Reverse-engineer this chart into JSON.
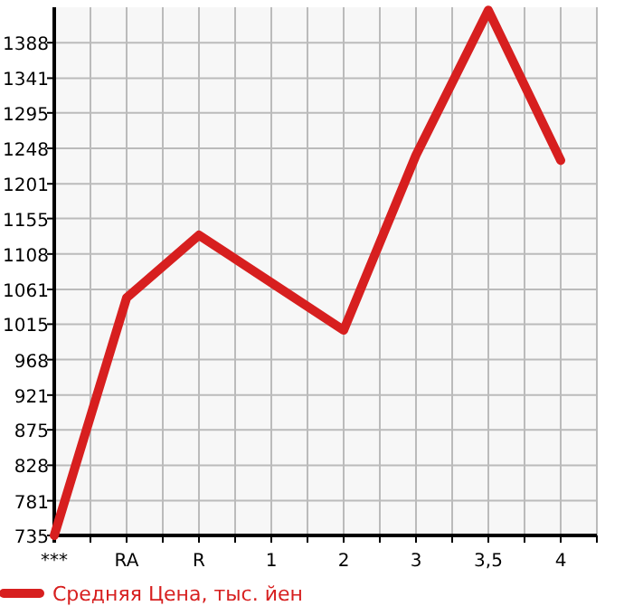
{
  "chart_data": {
    "type": "line",
    "categories": [
      "***",
      "RA",
      "R",
      "1",
      "2",
      "3",
      "3,5",
      "4"
    ],
    "series": [
      {
        "name": "Средняя Цена, тыс. йен",
        "color": "#d71f1f",
        "values": [
          735,
          1050,
          1133,
          1070,
          1007,
          1239,
          1431,
          1232
        ]
      }
    ],
    "ylim": [
      735,
      1435
    ],
    "yticks": [
      735,
      781,
      828,
      875,
      921,
      968,
      1015,
      1061,
      1108,
      1155,
      1201,
      1248,
      1295,
      1341,
      1388
    ],
    "grid": true,
    "legend": "bottom",
    "marker": "none",
    "line_style": "solid"
  }
}
